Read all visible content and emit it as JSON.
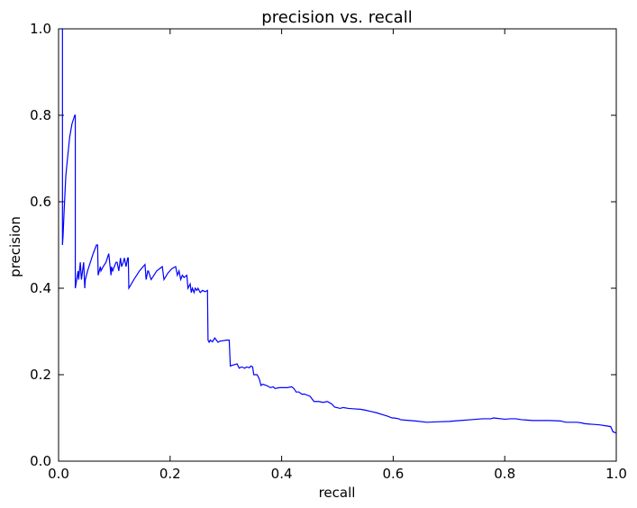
{
  "chart_data": {
    "type": "line",
    "title": "precision vs. recall",
    "xlabel": "recall",
    "ylabel": "precision",
    "xlim": [
      0.0,
      1.0
    ],
    "ylim": [
      0.0,
      1.0
    ],
    "xticks": [
      "0.0",
      "0.2",
      "0.4",
      "0.6",
      "0.8",
      "1.0"
    ],
    "yticks": [
      "0.0",
      "0.2",
      "0.4",
      "0.6",
      "0.8",
      "1.0"
    ],
    "grid": false,
    "line_color": "#0000ff",
    "series": [
      {
        "x": [
          0.005,
          0.005,
          0.007,
          0.007,
          0.008,
          0.01,
          0.013,
          0.016,
          0.02,
          0.024,
          0.029,
          0.03,
          0.03,
          0.035,
          0.036,
          0.039,
          0.041,
          0.043,
          0.045,
          0.047,
          0.048,
          0.052,
          0.057,
          0.062,
          0.068,
          0.07,
          0.071,
          0.075,
          0.076,
          0.08,
          0.085,
          0.09,
          0.094,
          0.095,
          0.097,
          0.1,
          0.103,
          0.105,
          0.108,
          0.111,
          0.113,
          0.116,
          0.118,
          0.121,
          0.124,
          0.125,
          0.126,
          0.135,
          0.145,
          0.155,
          0.157,
          0.16,
          0.161,
          0.166,
          0.171,
          0.176,
          0.181,
          0.186,
          0.189,
          0.196,
          0.203,
          0.21,
          0.213,
          0.216,
          0.219,
          0.222,
          0.225,
          0.23,
          0.232,
          0.236,
          0.238,
          0.24,
          0.243,
          0.245,
          0.248,
          0.25,
          0.254,
          0.258,
          0.263,
          0.267,
          0.268,
          0.27,
          0.272,
          0.276,
          0.28,
          0.286,
          0.29,
          0.292,
          0.301,
          0.306,
          0.308,
          0.312,
          0.32,
          0.324,
          0.328,
          0.334,
          0.337,
          0.342,
          0.345,
          0.348,
          0.35,
          0.356,
          0.36,
          0.363,
          0.366,
          0.373,
          0.38,
          0.385,
          0.388,
          0.396,
          0.402,
          0.41,
          0.418,
          0.422,
          0.426,
          0.431,
          0.436,
          0.441,
          0.451,
          0.458,
          0.467,
          0.474,
          0.482,
          0.486,
          0.49,
          0.495,
          0.505,
          0.51,
          0.52,
          0.53,
          0.541,
          0.55,
          0.56,
          0.57,
          0.58,
          0.59,
          0.598,
          0.601,
          0.61,
          0.613,
          0.62,
          0.64,
          0.66,
          0.68,
          0.7,
          0.72,
          0.74,
          0.76,
          0.775,
          0.78,
          0.787,
          0.8,
          0.81,
          0.82,
          0.83,
          0.84,
          0.85,
          0.86,
          0.88,
          0.9,
          0.903,
          0.91,
          0.93,
          0.94,
          0.942,
          0.95,
          0.96,
          0.97,
          0.98,
          0.99,
          0.994,
          1.0
        ],
        "y": [
          1.0,
          1.0,
          1.0,
          0.5,
          0.52,
          0.58,
          0.66,
          0.7,
          0.75,
          0.78,
          0.8,
          0.8,
          0.4,
          0.44,
          0.42,
          0.46,
          0.42,
          0.44,
          0.46,
          0.4,
          0.42,
          0.44,
          0.46,
          0.48,
          0.5,
          0.5,
          0.43,
          0.45,
          0.44,
          0.45,
          0.46,
          0.48,
          0.43,
          0.45,
          0.44,
          0.45,
          0.46,
          0.46,
          0.44,
          0.47,
          0.45,
          0.46,
          0.47,
          0.45,
          0.47,
          0.47,
          0.4,
          0.42,
          0.44,
          0.455,
          0.42,
          0.44,
          0.44,
          0.42,
          0.43,
          0.44,
          0.445,
          0.45,
          0.42,
          0.435,
          0.445,
          0.45,
          0.43,
          0.44,
          0.42,
          0.43,
          0.425,
          0.43,
          0.4,
          0.41,
          0.39,
          0.4,
          0.39,
          0.4,
          0.395,
          0.4,
          0.39,
          0.395,
          0.392,
          0.395,
          0.28,
          0.275,
          0.28,
          0.276,
          0.285,
          0.275,
          0.278,
          0.278,
          0.28,
          0.28,
          0.22,
          0.222,
          0.225,
          0.215,
          0.218,
          0.215,
          0.218,
          0.216,
          0.22,
          0.218,
          0.2,
          0.2,
          0.19,
          0.175,
          0.178,
          0.175,
          0.17,
          0.172,
          0.168,
          0.17,
          0.17,
          0.17,
          0.172,
          0.168,
          0.16,
          0.16,
          0.155,
          0.155,
          0.15,
          0.138,
          0.138,
          0.136,
          0.138,
          0.135,
          0.132,
          0.125,
          0.122,
          0.124,
          0.122,
          0.121,
          0.12,
          0.118,
          0.115,
          0.112,
          0.108,
          0.104,
          0.1,
          0.1,
          0.098,
          0.096,
          0.095,
          0.093,
          0.09,
          0.091,
          0.092,
          0.094,
          0.096,
          0.098,
          0.098,
          0.1,
          0.099,
          0.097,
          0.098,
          0.098,
          0.096,
          0.095,
          0.094,
          0.094,
          0.094,
          0.093,
          0.092,
          0.09,
          0.09,
          0.088,
          0.087,
          0.086,
          0.085,
          0.084,
          0.082,
          0.08,
          0.068,
          0.065
        ]
      }
    ]
  }
}
